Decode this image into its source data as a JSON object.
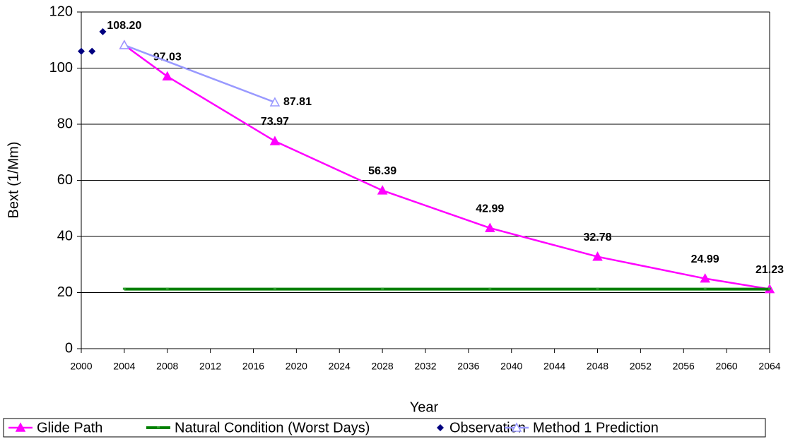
{
  "chart_data": {
    "type": "line",
    "xlabel": "Year",
    "ylabel": "Bext (1/Mm)",
    "series": [
      {
        "name": "Glide Path",
        "color": "#ff00ff",
        "marker": "triangle",
        "x": [
          2004,
          2008,
          2018,
          2028,
          2038,
          2048,
          2058,
          2064
        ],
        "values": [
          108.2,
          97.03,
          73.97,
          56.39,
          42.99,
          32.78,
          24.99,
          21.23
        ],
        "value_labels": [
          "108.20",
          "97.03",
          "73.97",
          "56.39",
          "42.99",
          "32.78",
          "24.99",
          "21.23"
        ]
      },
      {
        "name": "Natural Condition (Worst Days)",
        "color": "#008000",
        "marker": "dash",
        "x": [
          2004,
          2008,
          2018,
          2028,
          2038,
          2048,
          2058,
          2064
        ],
        "values": [
          21.23,
          21.23,
          21.23,
          21.23,
          21.23,
          21.23,
          21.23,
          21.23
        ]
      },
      {
        "name": "Observation",
        "color": "#000080",
        "marker": "diamond",
        "line": false,
        "x": [
          2000,
          2001,
          2002
        ],
        "values": [
          106,
          106,
          113
        ]
      },
      {
        "name": "Method 1 Prediction",
        "color": "#9999ff",
        "marker": "open-triangle",
        "x": [
          2004,
          2018
        ],
        "values": [
          108.2,
          87.81
        ],
        "value_labels": [
          null,
          "87.81"
        ]
      }
    ],
    "xlim": [
      2000,
      2064
    ],
    "xticks": [
      2000,
      2004,
      2008,
      2012,
      2016,
      2020,
      2024,
      2028,
      2032,
      2036,
      2040,
      2044,
      2048,
      2052,
      2056,
      2060,
      2064
    ],
    "ylim": [
      0,
      120
    ],
    "yticks": [
      0,
      20,
      40,
      60,
      80,
      100,
      120
    ],
    "grid": true,
    "legend": "bottom"
  }
}
